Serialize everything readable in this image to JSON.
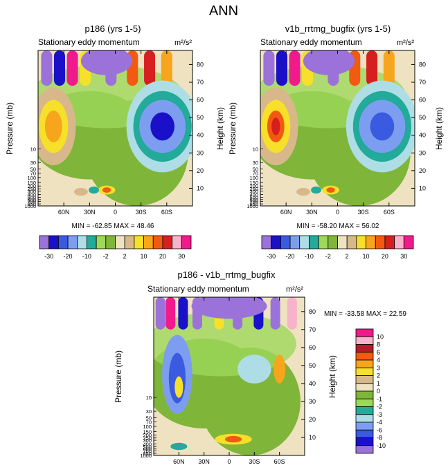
{
  "page_title": "ANN",
  "panels": [
    {
      "title": "p186 (yrs 1-5)",
      "left_label": "Stationary eddy momentum",
      "units": "m²/s²",
      "stats": "MIN = -62.85  MAX =  48.46"
    },
    {
      "title": "v1b_rrtmg_bugfix (yrs 1-5)",
      "left_label": "Stationary eddy momentum",
      "units": "m²/s²",
      "stats": "MIN = -58.20  MAX =  56.02"
    },
    {
      "title": "p186 - v1b_rrtmg_bugfix",
      "left_label": "Stationary eddy momentum",
      "units": "m²/s²",
      "stats": "MIN = -33.58  MAX =  22.59"
    }
  ],
  "chart_data": [
    {
      "type": "heatmap",
      "title": "p186 (yrs 1-5)",
      "subtitle": "Stationary eddy momentum",
      "units": "m²/s²",
      "xlabel": "",
      "ylabel": "Pressure (mb)",
      "ylabel_right": "Height (km)",
      "x_ticks": [
        "60N",
        "30N",
        "0",
        "30S",
        "60S"
      ],
      "y_ticks_pressure": [
        "10",
        "30",
        "50",
        "70",
        "100",
        "150",
        "200",
        "250",
        "300",
        "400",
        "500",
        "600",
        "700",
        "850",
        "1000"
      ],
      "y_ticks_height": [
        "10",
        "20",
        "30",
        "40",
        "50",
        "60",
        "70",
        "80"
      ],
      "min": -62.85,
      "max": 48.46,
      "features": [
        {
          "kind": "min",
          "lat": -55,
          "height_km": 45,
          "value": -40
        },
        {
          "kind": "max",
          "lat": 72,
          "height_km": 45,
          "value": 10
        },
        {
          "kind": "max",
          "lat": 10,
          "height_km": 9,
          "value": 10
        },
        {
          "kind": "min",
          "lat": 25,
          "height_km": 9,
          "value": -10
        }
      ],
      "colorbar": {
        "levels": [
          "-30",
          "-20",
          "-10",
          "-2",
          "2",
          "10",
          "20",
          "30"
        ],
        "colors": [
          "#9b72d9",
          "#1a10c8",
          "#3a5ae0",
          "#7d9ef0",
          "#aedde6",
          "#22aa9a",
          "#9ed85a",
          "#7fb63a",
          "#efe2c0",
          "#d8b88a",
          "#f7e02a",
          "#f7a51c",
          "#f25a12",
          "#d61f1f",
          "#f6b3c9",
          "#f01a8c"
        ]
      }
    },
    {
      "type": "heatmap",
      "title": "v1b_rrtmg_bugfix (yrs 1-5)",
      "subtitle": "Stationary eddy momentum",
      "units": "m²/s²",
      "xlabel": "",
      "ylabel": "Pressure (mb)",
      "ylabel_right": "Height (km)",
      "x_ticks": [
        "60N",
        "30N",
        "0",
        "30S",
        "60S"
      ],
      "y_ticks_pressure": [
        "10",
        "30",
        "50",
        "70",
        "100",
        "150",
        "200",
        "250",
        "300",
        "400",
        "500",
        "600",
        "700",
        "850",
        "1000"
      ],
      "y_ticks_height": [
        "10",
        "20",
        "30",
        "40",
        "50",
        "60",
        "70",
        "80"
      ],
      "min": -58.2,
      "max": 56.02,
      "features": [
        {
          "kind": "min",
          "lat": -52,
          "height_km": 45,
          "value": -30
        },
        {
          "kind": "max",
          "lat": 72,
          "height_km": 45,
          "value": 20
        },
        {
          "kind": "max",
          "lat": 8,
          "height_km": 9,
          "value": 10
        },
        {
          "kind": "min",
          "lat": 25,
          "height_km": 9,
          "value": -10
        }
      ],
      "colorbar": {
        "levels": [
          "-30",
          "-20",
          "-10",
          "-2",
          "2",
          "10",
          "20",
          "30"
        ],
        "colors": [
          "#9b72d9",
          "#1a10c8",
          "#3a5ae0",
          "#7d9ef0",
          "#aedde6",
          "#22aa9a",
          "#9ed85a",
          "#7fb63a",
          "#efe2c0",
          "#d8b88a",
          "#f7e02a",
          "#f7a51c",
          "#f25a12",
          "#d61f1f",
          "#f6b3c9",
          "#f01a8c"
        ]
      }
    },
    {
      "type": "heatmap",
      "title": "p186 - v1b_rrtmg_bugfix",
      "subtitle": "Stationary eddy momentum",
      "units": "m²/s²",
      "xlabel": "",
      "ylabel": "Pressure (mb)",
      "ylabel_right": "Height (km)",
      "x_ticks": [
        "60N",
        "30N",
        "0",
        "30S",
        "60S"
      ],
      "y_ticks_pressure": [
        "10",
        "30",
        "50",
        "70",
        "100",
        "150",
        "200",
        "250",
        "300",
        "400",
        "500",
        "600",
        "700",
        "850",
        "1000"
      ],
      "y_ticks_height": [
        "10",
        "20",
        "30",
        "40",
        "50",
        "60",
        "70",
        "80"
      ],
      "min": -33.58,
      "max": 22.59,
      "features": [
        {
          "kind": "min",
          "lat": 62,
          "height_km": 45,
          "value": -6
        },
        {
          "kind": "min",
          "lat": -30,
          "height_km": 48,
          "value": -4
        },
        {
          "kind": "max",
          "lat": -60,
          "height_km": 48,
          "value": 3
        },
        {
          "kind": "max",
          "lat": -5,
          "height_km": 9,
          "value": 4
        }
      ],
      "colorbar": {
        "levels": [
          "10",
          "8",
          "6",
          "4",
          "3",
          "2",
          "1",
          "0",
          "-1",
          "-2",
          "-3",
          "-4",
          "-6",
          "-8",
          "-10"
        ],
        "colors": [
          "#f01a8c",
          "#f6b3c9",
          "#b01e28",
          "#f25a12",
          "#f7a51c",
          "#f7e02a",
          "#d8b88a",
          "#efe2c0",
          "#7fb63a",
          "#9ed85a",
          "#22aa9a",
          "#aedde6",
          "#7d9ef0",
          "#3a5ae0",
          "#1a10c8",
          "#9b72d9"
        ]
      }
    }
  ]
}
